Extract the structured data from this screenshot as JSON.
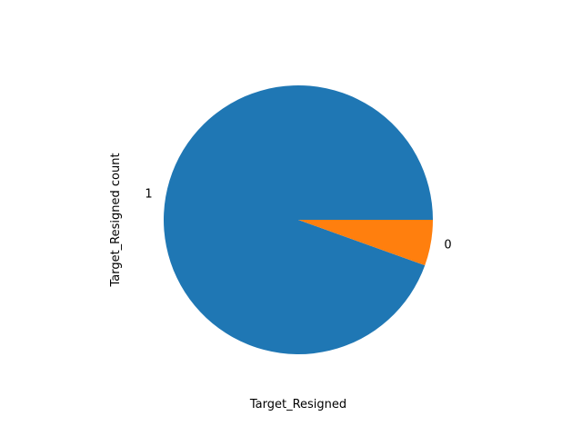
{
  "chart_data": {
    "type": "pie",
    "title": "",
    "categories": [
      "1",
      "0"
    ],
    "values": [
      94.5,
      5.5
    ],
    "colors": [
      "#1f77b4",
      "#ff7f0e"
    ],
    "xlabel": "Target_Resigned",
    "ylabel": "Target_Resigned count",
    "start_angle": 0,
    "direction": "counterclockwise"
  }
}
